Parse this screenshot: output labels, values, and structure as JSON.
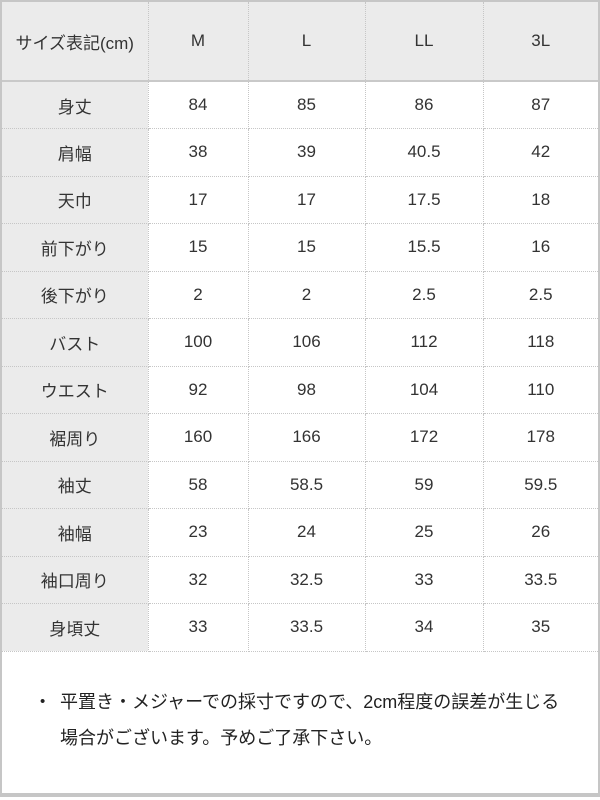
{
  "chart_data": {
    "type": "table",
    "title": "サイズ表記(cm)",
    "columns": [
      "サイズ表記(cm)",
      "M",
      "L",
      "LL",
      "3L"
    ],
    "rows": [
      {
        "label": "身丈",
        "values": [
          "84",
          "85",
          "86",
          "87"
        ]
      },
      {
        "label": "肩幅",
        "values": [
          "38",
          "39",
          "40.5",
          "42"
        ]
      },
      {
        "label": "天巾",
        "values": [
          "17",
          "17",
          "17.5",
          "18"
        ]
      },
      {
        "label": "前下がり",
        "values": [
          "15",
          "15",
          "15.5",
          "16"
        ]
      },
      {
        "label": "後下がり",
        "values": [
          "2",
          "2",
          "2.5",
          "2.5"
        ]
      },
      {
        "label": "バスト",
        "values": [
          "100",
          "106",
          "112",
          "118"
        ]
      },
      {
        "label": "ウエスト",
        "values": [
          "92",
          "98",
          "104",
          "110"
        ]
      },
      {
        "label": "裾周り",
        "values": [
          "160",
          "166",
          "172",
          "178"
        ]
      },
      {
        "label": "袖丈",
        "values": [
          "58",
          "58.5",
          "59",
          "59.5"
        ]
      },
      {
        "label": "袖幅",
        "values": [
          "23",
          "24",
          "25",
          "26"
        ]
      },
      {
        "label": "袖口周り",
        "values": [
          "32",
          "32.5",
          "33",
          "33.5"
        ]
      },
      {
        "label": "身頃丈",
        "values": [
          "33",
          "33.5",
          "34",
          "35"
        ]
      }
    ]
  },
  "note": {
    "bullet": "•",
    "lines": [
      "平置き・メジャーでの採寸ですので、2cm程度の誤差が生じる",
      "場合がございます。予めご了承下さい。"
    ]
  },
  "colors": {
    "header_bg": "#ebebeb",
    "cell_bg": "#ffffff",
    "border_outer": "#c6c6c6",
    "border_inner_dotted": "#c6c6c6",
    "table_text": "#333333",
    "note_text": "#222222"
  }
}
